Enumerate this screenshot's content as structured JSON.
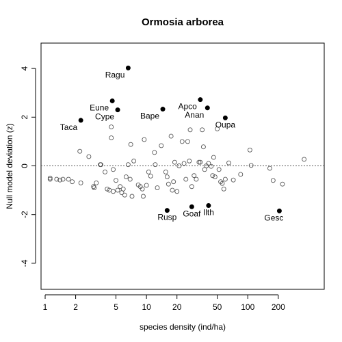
{
  "chart_data": {
    "type": "scatter",
    "title": "Ormosia arborea",
    "xlabel": "species density (ind/ha)",
    "ylabel": "Null model deviation (z)",
    "x_scale": "log",
    "xlim": [
      1,
      450
    ],
    "ylim": [
      -5,
      5
    ],
    "x_ticks": [
      {
        "value": 1,
        "label": "1"
      },
      {
        "value": 2,
        "label": "2"
      },
      {
        "value": 5,
        "label": "5"
      },
      {
        "value": 10,
        "label": "10"
      },
      {
        "value": 20,
        "label": "20"
      },
      {
        "value": 50,
        "label": "50"
      },
      {
        "value": 100,
        "label": "100"
      },
      {
        "value": 200,
        "label": "200"
      }
    ],
    "y_ticks": [
      {
        "value": -4,
        "label": "-4"
      },
      {
        "value": -2,
        "label": "-2"
      },
      {
        "value": 0,
        "label": "0"
      },
      {
        "value": 2,
        "label": "2"
      },
      {
        "value": 4,
        "label": "4"
      }
    ],
    "reference_line_y": 0,
    "colors": {
      "axis": "#000000",
      "filled": "#000000",
      "open_stroke": "#555555",
      "ref_line": "#555555"
    },
    "highlighted": [
      {
        "label": "Ragu",
        "x": 6.6,
        "y": 4.02,
        "label_side": "left-below"
      },
      {
        "label": "Eune",
        "x": 4.6,
        "y": 2.67,
        "label_side": "left-below"
      },
      {
        "label": "Cype",
        "x": 5.2,
        "y": 2.3,
        "label_side": "left-below"
      },
      {
        "label": "Taca",
        "x": 2.25,
        "y": 1.87,
        "label_side": "left-below"
      },
      {
        "label": "Bape",
        "x": 14.5,
        "y": 2.33,
        "label_side": "left-below"
      },
      {
        "label": "Apco",
        "x": 34,
        "y": 2.72,
        "label_side": "left-below"
      },
      {
        "label": "Anan",
        "x": 40,
        "y": 2.38,
        "label_side": "left-below"
      },
      {
        "label": "Oupa",
        "x": 60,
        "y": 1.97,
        "label_side": "below"
      },
      {
        "label": "Rusp",
        "x": 16,
        "y": -1.83,
        "label_side": "below"
      },
      {
        "label": "Goaf",
        "x": 28,
        "y": -1.68,
        "label_side": "below"
      },
      {
        "label": "Ilth",
        "x": 41,
        "y": -1.63,
        "label_side": "below"
      },
      {
        "label": "Gesc",
        "x": 205,
        "y": -1.85,
        "label_side": "below-left"
      }
    ],
    "others": [
      {
        "x": 1.12,
        "y": -0.5
      },
      {
        "x": 1.12,
        "y": -0.55
      },
      {
        "x": 1.3,
        "y": -0.55
      },
      {
        "x": 1.4,
        "y": -0.58
      },
      {
        "x": 1.5,
        "y": -0.55
      },
      {
        "x": 1.7,
        "y": -0.55
      },
      {
        "x": 1.85,
        "y": -0.65
      },
      {
        "x": 2.2,
        "y": 0.6
      },
      {
        "x": 2.25,
        "y": -0.7
      },
      {
        "x": 2.7,
        "y": 0.38
      },
      {
        "x": 3.0,
        "y": -0.85
      },
      {
        "x": 3.05,
        "y": -0.9
      },
      {
        "x": 3.2,
        "y": -0.7
      },
      {
        "x": 3.5,
        "y": 0.05
      },
      {
        "x": 3.55,
        "y": 0.05
      },
      {
        "x": 3.9,
        "y": -0.25
      },
      {
        "x": 4.1,
        "y": -0.95
      },
      {
        "x": 4.3,
        "y": -1.0
      },
      {
        "x": 4.5,
        "y": 1.15
      },
      {
        "x": 4.5,
        "y": 1.6
      },
      {
        "x": 4.7,
        "y": -1.05
      },
      {
        "x": 4.7,
        "y": -0.15
      },
      {
        "x": 5.0,
        "y": -0.6
      },
      {
        "x": 5.2,
        "y": -1.0
      },
      {
        "x": 5.5,
        "y": -0.85
      },
      {
        "x": 5.7,
        "y": -1.1
      },
      {
        "x": 5.9,
        "y": -0.95
      },
      {
        "x": 6.1,
        "y": -1.2
      },
      {
        "x": 6.3,
        "y": -0.45
      },
      {
        "x": 6.6,
        "y": 0.05
      },
      {
        "x": 6.9,
        "y": -0.55
      },
      {
        "x": 7.0,
        "y": 0.88
      },
      {
        "x": 7.2,
        "y": -1.25
      },
      {
        "x": 7.5,
        "y": 0.2
      },
      {
        "x": 8.3,
        "y": -0.78
      },
      {
        "x": 8.7,
        "y": -0.85
      },
      {
        "x": 9.1,
        "y": -0.95
      },
      {
        "x": 9.3,
        "y": -1.25
      },
      {
        "x": 9.5,
        "y": 1.08
      },
      {
        "x": 10.0,
        "y": -0.8
      },
      {
        "x": 10.5,
        "y": -0.25
      },
      {
        "x": 11.0,
        "y": -0.42
      },
      {
        "x": 12.0,
        "y": 0.55
      },
      {
        "x": 12.2,
        "y": 0.05
      },
      {
        "x": 12.8,
        "y": -0.9
      },
      {
        "x": 14.0,
        "y": 0.83
      },
      {
        "x": 15.5,
        "y": -0.25
      },
      {
        "x": 16.0,
        "y": -0.45
      },
      {
        "x": 16.5,
        "y": -0.75
      },
      {
        "x": 17.5,
        "y": 1.22
      },
      {
        "x": 18.0,
        "y": -1.0
      },
      {
        "x": 18.5,
        "y": -0.65
      },
      {
        "x": 19.0,
        "y": 0.15
      },
      {
        "x": 20.0,
        "y": -1.05
      },
      {
        "x": 21.0,
        "y": 0.0
      },
      {
        "x": 22.5,
        "y": 1.0
      },
      {
        "x": 23.5,
        "y": 0.1
      },
      {
        "x": 24.5,
        "y": -0.55
      },
      {
        "x": 25.5,
        "y": 1.0
      },
      {
        "x": 26.5,
        "y": 0.2
      },
      {
        "x": 27.0,
        "y": 1.48
      },
      {
        "x": 28.0,
        "y": -0.85
      },
      {
        "x": 29.5,
        "y": -0.4
      },
      {
        "x": 31.0,
        "y": -0.55
      },
      {
        "x": 33.0,
        "y": 0.15
      },
      {
        "x": 34.0,
        "y": 0.15
      },
      {
        "x": 35.5,
        "y": 1.48
      },
      {
        "x": 36.5,
        "y": 0.78
      },
      {
        "x": 37.5,
        "y": -0.15
      },
      {
        "x": 39.0,
        "y": 0.0
      },
      {
        "x": 41.0,
        "y": 0.1
      },
      {
        "x": 43.5,
        "y": -0.02
      },
      {
        "x": 45.0,
        "y": -0.4
      },
      {
        "x": 46.0,
        "y": 0.35
      },
      {
        "x": 47.5,
        "y": -0.45
      },
      {
        "x": 50.0,
        "y": 1.52
      },
      {
        "x": 52.0,
        "y": -0.15
      },
      {
        "x": 54.0,
        "y": -0.65
      },
      {
        "x": 56.0,
        "y": -0.72
      },
      {
        "x": 58.0,
        "y": -0.95
      },
      {
        "x": 60.0,
        "y": -0.55
      },
      {
        "x": 65.0,
        "y": 0.12
      },
      {
        "x": 72.0,
        "y": -0.58
      },
      {
        "x": 85.0,
        "y": -0.35
      },
      {
        "x": 105.0,
        "y": 0.65
      },
      {
        "x": 108.0,
        "y": 0.02
      },
      {
        "x": 165.0,
        "y": -0.1
      },
      {
        "x": 178.0,
        "y": -0.6
      },
      {
        "x": 220.0,
        "y": -0.75
      },
      {
        "x": 360.0,
        "y": 0.27
      }
    ]
  }
}
